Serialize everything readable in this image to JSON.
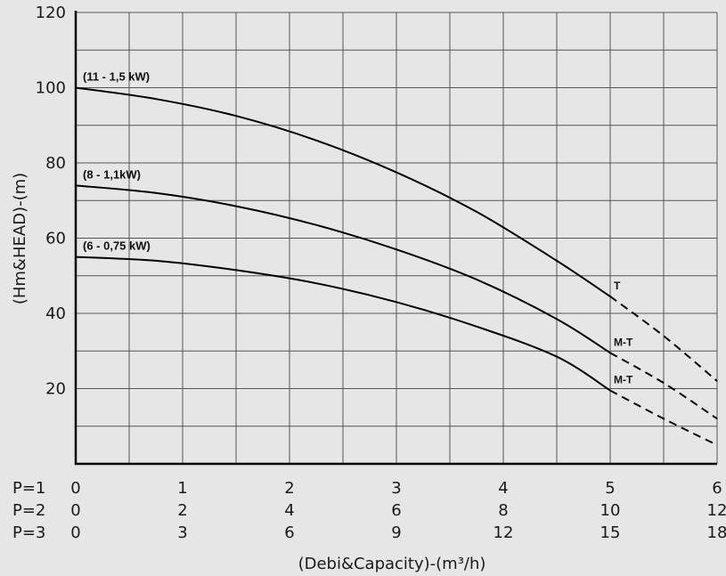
{
  "chart_data": {
    "type": "line",
    "ylabel": "(Hm&HEAD)-(m)",
    "xlabel": "(Debi&Capacity)-(m³/h)",
    "ylim": [
      0,
      120
    ],
    "y_ticks": [
      "20",
      "40",
      "60",
      "80",
      "100",
      "120"
    ],
    "xlim": [
      0,
      6
    ],
    "grid": true,
    "x_scales": [
      {
        "label": "P=1",
        "ticks": [
          "0",
          "1",
          "2",
          "3",
          "4",
          "5",
          "6"
        ]
      },
      {
        "label": "P=2",
        "ticks": [
          "0",
          "2",
          "4",
          "6",
          "8",
          "10",
          "12"
        ]
      },
      {
        "label": "P=3",
        "ticks": [
          "0",
          "3",
          "6",
          "9",
          "12",
          "15",
          "18"
        ]
      }
    ],
    "series": [
      {
        "name": "(11 - 1,5 kW)",
        "end_label": "T",
        "solid": [
          [
            0,
            100
          ],
          [
            0.75,
            97
          ],
          [
            1.5,
            92.5
          ],
          [
            2.25,
            86
          ],
          [
            3,
            77.5
          ],
          [
            3.75,
            67
          ],
          [
            4.5,
            54
          ],
          [
            5,
            44.5
          ]
        ],
        "dashed": [
          [
            5,
            44.5
          ],
          [
            5.5,
            34
          ],
          [
            6,
            22
          ]
        ]
      },
      {
        "name": "(8 - 1,1kW)",
        "end_label": "M-T",
        "solid": [
          [
            0,
            74
          ],
          [
            0.75,
            72
          ],
          [
            1.5,
            68.5
          ],
          [
            2.25,
            63.5
          ],
          [
            3,
            57
          ],
          [
            3.75,
            49
          ],
          [
            4.5,
            38.5
          ],
          [
            5,
            29.5
          ]
        ],
        "dashed": [
          [
            5,
            29.5
          ],
          [
            5.5,
            21.5
          ],
          [
            6,
            12
          ]
        ]
      },
      {
        "name": "(6 - 0,75 kW)",
        "end_label": "M-T",
        "solid": [
          [
            0,
            55
          ],
          [
            0.75,
            54
          ],
          [
            1.5,
            51.5
          ],
          [
            2.25,
            48
          ],
          [
            3,
            43
          ],
          [
            3.75,
            36.5
          ],
          [
            4.5,
            28.5
          ],
          [
            5,
            19.5
          ]
        ],
        "dashed": [
          [
            5,
            19.5
          ],
          [
            5.5,
            12
          ],
          [
            6,
            5
          ]
        ]
      }
    ]
  }
}
